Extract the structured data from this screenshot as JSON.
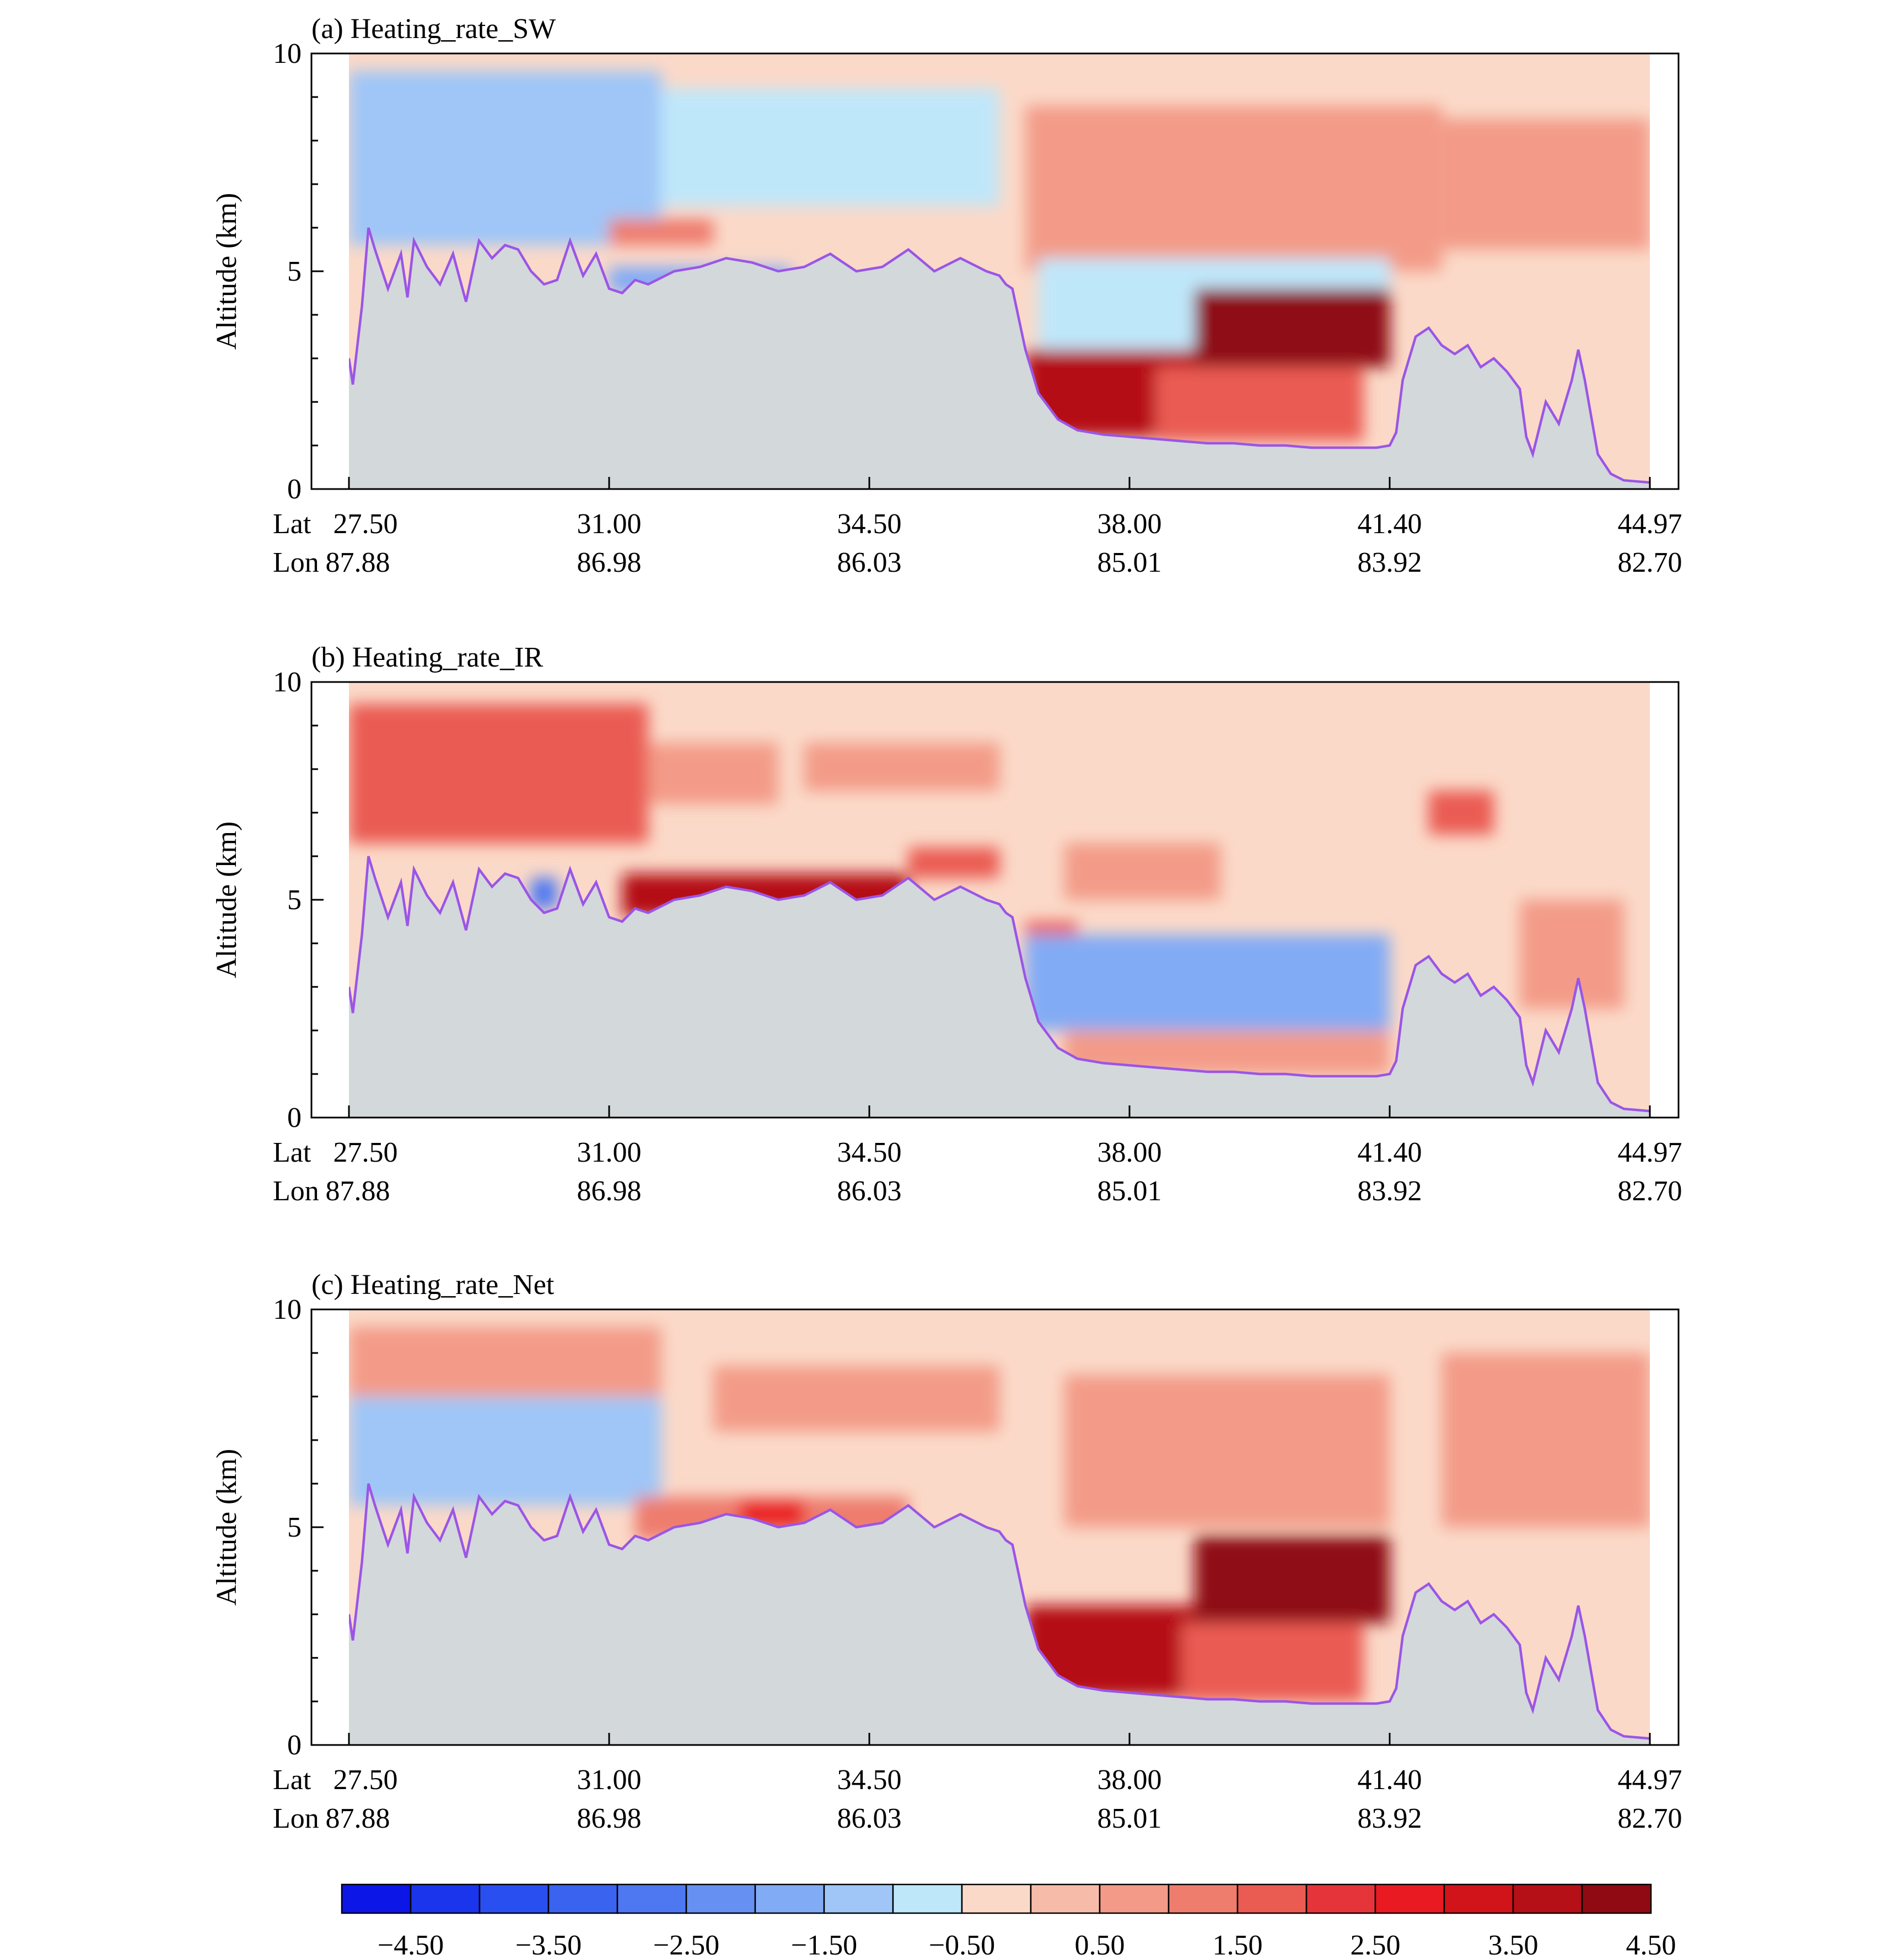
{
  "colors": {
    "terrain": "#d3d8da",
    "terrain_line": "#9b55e6",
    "background": "#bfeef8",
    "frame": "#000000"
  },
  "chart_data": [
    {
      "type": "heatmap",
      "panel": "a",
      "title": "(a) Heating_rate_SW",
      "ylabel": "Altitude (km)",
      "ylim": [
        0,
        10
      ],
      "yticks": [
        "0",
        "5",
        "10"
      ],
      "x_row_labels": [
        "Lat",
        "Lon"
      ],
      "x_lat": [
        "27.50",
        "31.00",
        "34.50",
        "38.00",
        "41.40",
        "44.97"
      ],
      "x_lon": [
        "87.88",
        "86.98",
        "86.03",
        "85.01",
        "83.92",
        "82.70"
      ],
      "base_level": "-0.50",
      "regions": [
        {
          "x0": 0.0,
          "x1": 0.24,
          "y0": 5.6,
          "y1": 9.6,
          "level": "-1.50"
        },
        {
          "x0": 0.24,
          "x1": 0.5,
          "y0": 6.5,
          "y1": 9.2,
          "level": "-1.00"
        },
        {
          "x0": 0.2,
          "x1": 0.28,
          "y0": 5.6,
          "y1": 6.2,
          "level": "1.00"
        },
        {
          "x0": 0.2,
          "x1": 0.34,
          "y0": 4.5,
          "y1": 5.1,
          "level": "-2.00"
        },
        {
          "x0": 0.52,
          "x1": 0.84,
          "y0": 5.0,
          "y1": 8.8,
          "level": "0.50"
        },
        {
          "x0": 0.53,
          "x1": 0.8,
          "y0": 3.2,
          "y1": 5.3,
          "level": "-1.00"
        },
        {
          "x0": 0.52,
          "x1": 0.65,
          "y0": 1.2,
          "y1": 3.2,
          "level": "3.50"
        },
        {
          "x0": 0.65,
          "x1": 0.8,
          "y0": 2.8,
          "y1": 4.6,
          "level": "4.00"
        },
        {
          "x0": 0.62,
          "x1": 0.78,
          "y0": 1.1,
          "y1": 2.8,
          "level": "1.50"
        },
        {
          "x0": 0.84,
          "x1": 1.0,
          "y0": 5.5,
          "y1": 8.5,
          "level": "0.50"
        }
      ]
    },
    {
      "type": "heatmap",
      "panel": "b",
      "title": "(b) Heating_rate_IR",
      "ylabel": "Altitude (km)",
      "ylim": [
        0,
        10
      ],
      "yticks": [
        "0",
        "5",
        "10"
      ],
      "x_row_labels": [
        "Lat",
        "Lon"
      ],
      "x_lat": [
        "27.50",
        "31.00",
        "34.50",
        "38.00",
        "41.40",
        "44.97"
      ],
      "x_lon": [
        "87.88",
        "86.98",
        "86.03",
        "85.01",
        "83.92",
        "82.70"
      ],
      "base_level": "-0.50",
      "regions": [
        {
          "x0": 0.0,
          "x1": 0.23,
          "y0": 6.3,
          "y1": 9.5,
          "level": "1.50"
        },
        {
          "x0": 0.23,
          "x1": 0.33,
          "y0": 7.2,
          "y1": 8.6,
          "level": "0.50"
        },
        {
          "x0": 0.35,
          "x1": 0.5,
          "y0": 7.5,
          "y1": 8.6,
          "level": "0.50"
        },
        {
          "x0": 0.21,
          "x1": 0.43,
          "y0": 4.6,
          "y1": 5.6,
          "level": "3.50"
        },
        {
          "x0": 0.43,
          "x1": 0.5,
          "y0": 5.5,
          "y1": 6.2,
          "level": "1.50"
        },
        {
          "x0": 0.14,
          "x1": 0.16,
          "y0": 4.8,
          "y1": 5.5,
          "level": "-3.00"
        },
        {
          "x0": 0.55,
          "x1": 0.67,
          "y0": 5.0,
          "y1": 6.3,
          "level": "0.50"
        },
        {
          "x0": 0.52,
          "x1": 0.56,
          "y0": 3.0,
          "y1": 4.5,
          "level": "1.50"
        },
        {
          "x0": 0.52,
          "x1": 0.8,
          "y0": 2.0,
          "y1": 4.2,
          "level": "-2.00"
        },
        {
          "x0": 0.55,
          "x1": 0.8,
          "y0": 1.0,
          "y1": 2.0,
          "level": "0.50"
        },
        {
          "x0": 0.83,
          "x1": 0.88,
          "y0": 6.5,
          "y1": 7.5,
          "level": "1.50"
        },
        {
          "x0": 0.9,
          "x1": 0.98,
          "y0": 2.5,
          "y1": 5.0,
          "level": "0.50"
        }
      ]
    },
    {
      "type": "heatmap",
      "panel": "c",
      "title": "(c) Heating_rate_Net",
      "ylabel": "Altitude (km)",
      "ylim": [
        0,
        10
      ],
      "yticks": [
        "0",
        "5",
        "10"
      ],
      "x_row_labels": [
        "Lat",
        "Lon"
      ],
      "x_lat": [
        "27.50",
        "31.00",
        "34.50",
        "38.00",
        "41.40",
        "44.97"
      ],
      "x_lon": [
        "87.88",
        "86.98",
        "86.03",
        "85.01",
        "83.92",
        "82.70"
      ],
      "base_level": "-0.50",
      "regions": [
        {
          "x0": 0.0,
          "x1": 0.24,
          "y0": 8.0,
          "y1": 9.6,
          "level": "0.50"
        },
        {
          "x0": 0.28,
          "x1": 0.5,
          "y0": 7.2,
          "y1": 8.7,
          "level": "0.50"
        },
        {
          "x0": 0.0,
          "x1": 0.24,
          "y0": 5.5,
          "y1": 8.0,
          "level": "-1.50"
        },
        {
          "x0": 0.22,
          "x1": 0.43,
          "y0": 4.7,
          "y1": 5.7,
          "level": "1.00"
        },
        {
          "x0": 0.3,
          "x1": 0.35,
          "y0": 5.0,
          "y1": 5.6,
          "level": "2.50"
        },
        {
          "x0": 0.55,
          "x1": 0.8,
          "y0": 5.0,
          "y1": 8.5,
          "level": "0.50"
        },
        {
          "x0": 0.52,
          "x1": 0.65,
          "y0": 1.1,
          "y1": 3.2,
          "level": "3.50"
        },
        {
          "x0": 0.65,
          "x1": 0.8,
          "y0": 2.8,
          "y1": 4.8,
          "level": "4.00"
        },
        {
          "x0": 0.64,
          "x1": 0.78,
          "y0": 1.0,
          "y1": 2.8,
          "level": "1.50"
        },
        {
          "x0": 0.84,
          "x1": 1.0,
          "y0": 5.0,
          "y1": 9.0,
          "level": "0.50"
        }
      ]
    }
  ],
  "colorbar": {
    "levels": [
      "-5.00",
      "-4.50",
      "-4.00",
      "-3.50",
      "-3.00",
      "-2.50",
      "-2.00",
      "-1.50",
      "-1.00",
      "-0.50",
      "0.00",
      "0.50",
      "1.00",
      "1.50",
      "2.00",
      "2.50",
      "3.00",
      "3.50",
      "4.00",
      "4.50",
      "5.00"
    ],
    "colors": [
      "#0c16e6",
      "#1a35eb",
      "#2a4ff0",
      "#3a63f0",
      "#4e78f2",
      "#6691f2",
      "#82abf5",
      "#9fc6f7",
      "#bfe7fa",
      "#fbd9c8",
      "#f7bca9",
      "#f39b88",
      "#ee7d6e",
      "#ea5b52",
      "#e6353a",
      "#ea1a22",
      "#d1141a",
      "#b50f18",
      "#8f0a12"
    ],
    "labels": [
      "−4.50",
      "−3.50",
      "−2.50",
      "−1.50",
      "−0.50",
      "0.50",
      "1.50",
      "2.50",
      "3.50",
      "4.50"
    ]
  },
  "terrain_profile": {
    "x": [
      0.0,
      0.003,
      0.01,
      0.015,
      0.02,
      0.03,
      0.04,
      0.045,
      0.05,
      0.06,
      0.07,
      0.08,
      0.09,
      0.1,
      0.11,
      0.12,
      0.13,
      0.14,
      0.15,
      0.16,
      0.17,
      0.18,
      0.19,
      0.2,
      0.21,
      0.22,
      0.23,
      0.25,
      0.27,
      0.29,
      0.31,
      0.33,
      0.35,
      0.37,
      0.39,
      0.41,
      0.43,
      0.45,
      0.47,
      0.49,
      0.5,
      0.505,
      0.51,
      0.52,
      0.53,
      0.545,
      0.56,
      0.58,
      0.6,
      0.62,
      0.64,
      0.66,
      0.68,
      0.7,
      0.72,
      0.74,
      0.76,
      0.78,
      0.79,
      0.8,
      0.805,
      0.81,
      0.82,
      0.83,
      0.84,
      0.85,
      0.86,
      0.87,
      0.88,
      0.89,
      0.9,
      0.905,
      0.91,
      0.92,
      0.93,
      0.94,
      0.945,
      0.95,
      0.96,
      0.97,
      0.98,
      1.0
    ],
    "alt": [
      3.0,
      2.4,
      4.2,
      6.0,
      5.5,
      4.6,
      5.4,
      4.4,
      5.7,
      5.1,
      4.7,
      5.4,
      4.3,
      5.7,
      5.3,
      5.6,
      5.5,
      5.0,
      4.7,
      4.8,
      5.7,
      4.9,
      5.4,
      4.6,
      4.5,
      4.8,
      4.7,
      5.0,
      5.1,
      5.3,
      5.2,
      5.0,
      5.1,
      5.4,
      5.0,
      5.1,
      5.5,
      5.0,
      5.3,
      5.0,
      4.9,
      4.7,
      4.6,
      3.2,
      2.2,
      1.6,
      1.35,
      1.25,
      1.2,
      1.15,
      1.1,
      1.05,
      1.05,
      1.0,
      1.0,
      0.95,
      0.95,
      0.95,
      0.95,
      1.0,
      1.3,
      2.5,
      3.5,
      3.7,
      3.3,
      3.1,
      3.3,
      2.8,
      3.0,
      2.7,
      2.3,
      1.2,
      0.8,
      2.0,
      1.5,
      2.5,
      3.2,
      2.5,
      0.8,
      0.35,
      0.2,
      0.15
    ]
  }
}
